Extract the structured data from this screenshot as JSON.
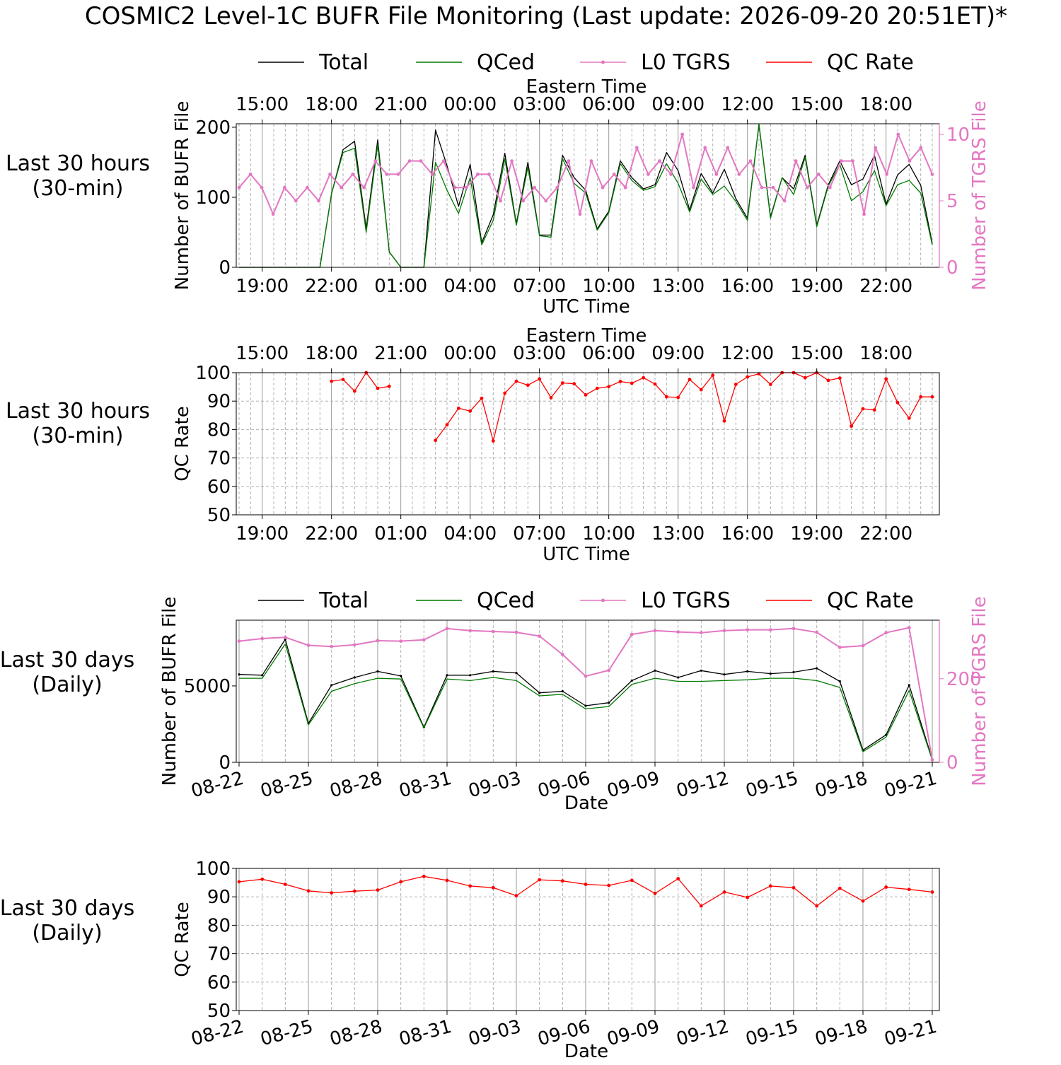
{
  "title": "COSMIC2 Level-1C BUFR File Monitoring (Last update: 2026-09-20 20:51ET)*",
  "legend": [
    {
      "label": "Total",
      "color": "#000000",
      "marker": false
    },
    {
      "label": "QCed",
      "color": "#007a00",
      "marker": false
    },
    {
      "label": "L0 TGRS",
      "color": "#e377c2",
      "marker": true
    },
    {
      "label": "QC Rate",
      "color": "#ff0000",
      "marker": false
    }
  ],
  "row_labels": [
    [
      "Last 30 hours",
      "(30-min)"
    ],
    [
      "Last 30 hours",
      "(30-min)"
    ],
    [
      "Last 30 days",
      "(Daily)"
    ],
    [
      "Last 30 days",
      "(Daily)"
    ]
  ],
  "colors": {
    "total": "#000000",
    "qced": "#007a00",
    "tgrs": "#e377c2",
    "qcrate": "#ff0000"
  },
  "chart_data": [
    {
      "type": "line",
      "x_label": "UTC Time",
      "top_x_label": "Eastern Time",
      "ylabel": "Number of BUFR File",
      "y2label": "Number of TGRS File",
      "ylim": [
        0,
        205
      ],
      "y2lim": [
        0,
        10.8
      ],
      "yticks": [
        0,
        100,
        200
      ],
      "y2ticks": [
        0,
        5,
        10
      ],
      "x_ticks": [
        "19:00",
        "22:00",
        "01:00",
        "04:00",
        "07:00",
        "10:00",
        "13:00",
        "16:00",
        "19:00",
        "22:00"
      ],
      "top_ticks": [
        "15:00",
        "18:00",
        "21:00",
        "00:00",
        "03:00",
        "06:00",
        "09:00",
        "12:00",
        "15:00",
        "18:00"
      ],
      "series": [
        {
          "name": "Total",
          "values": [
            0,
            0,
            0,
            0,
            0,
            0,
            0,
            0,
            105,
            168,
            180,
            55,
            182,
            22,
            0,
            0,
            0,
            196,
            145,
            87,
            147,
            35,
            75,
            163,
            62,
            150,
            46,
            46,
            160,
            128,
            110,
            55,
            80,
            152,
            128,
            112,
            118,
            164,
            138,
            82,
            134,
            106,
            140,
            98,
            70,
            204,
            72,
            128,
            112,
            160,
            60,
            118,
            152,
            118,
            126,
            160,
            90,
            132,
            147,
            117,
            34
          ]
        },
        {
          "name": "QCed",
          "values": [
            0,
            0,
            0,
            0,
            0,
            0,
            0,
            0,
            105,
            164,
            170,
            50,
            175,
            22,
            0,
            0,
            0,
            150,
            110,
            77,
            128,
            32,
            67,
            155,
            60,
            143,
            45,
            43,
            155,
            120,
            106,
            53,
            78,
            148,
            124,
            110,
            115,
            148,
            120,
            79,
            126,
            104,
            116,
            94,
            67,
            204,
            70,
            128,
            104,
            157,
            58,
            116,
            147,
            95,
            108,
            138,
            88,
            118,
            124,
            106,
            32
          ]
        },
        {
          "name": "L0 TGRS",
          "y_axis": "right",
          "values": [
            6,
            7,
            6,
            4,
            6,
            5,
            6,
            5,
            7,
            6,
            7,
            6,
            8,
            7,
            7,
            8,
            8,
            7,
            8,
            6,
            6,
            7,
            7,
            5,
            8,
            5,
            6,
            5,
            6,
            8,
            4,
            8,
            6,
            7,
            6,
            9,
            7,
            8,
            7,
            10,
            6,
            9,
            7,
            9,
            7,
            8,
            6,
            6,
            5,
            8,
            6,
            7,
            6,
            8,
            8,
            4,
            9,
            7,
            10,
            8,
            9,
            7
          ]
        }
      ]
    },
    {
      "type": "line",
      "x_label": "UTC Time",
      "top_x_label": "Eastern Time",
      "ylabel": "QC Rate",
      "ylim": [
        50,
        100
      ],
      "yticks": [
        50,
        60,
        70,
        80,
        90,
        100
      ],
      "x_ticks": [
        "19:00",
        "22:00",
        "01:00",
        "04:00",
        "07:00",
        "10:00",
        "13:00",
        "16:00",
        "19:00",
        "22:00"
      ],
      "top_ticks": [
        "15:00",
        "18:00",
        "21:00",
        "00:00",
        "03:00",
        "06:00",
        "09:00",
        "12:00",
        "15:00",
        "18:00"
      ],
      "series": [
        {
          "name": "QC Rate",
          "values": [
            null,
            null,
            null,
            null,
            null,
            null,
            null,
            null,
            97,
            97.6,
            93.5,
            100,
            94.5,
            95.2,
            null,
            null,
            null,
            76.2,
            81.7,
            87.5,
            86.5,
            91,
            76,
            92.8,
            97,
            95.6,
            97.8,
            91.2,
            96.4,
            96.1,
            92.2,
            94.5,
            95.1,
            96.9,
            96.3,
            98.2,
            96,
            91.5,
            91.3,
            97.6,
            94,
            99.1,
            83,
            95.9,
            98.5,
            99.6,
            95.9,
            100,
            100,
            98.2,
            100,
            97.3,
            98.1,
            81.2,
            87.3,
            86.9,
            97.8,
            89.5,
            84,
            91.5,
            91.5
          ]
        }
      ]
    },
    {
      "type": "line",
      "x_label": "Date",
      "ylabel": "Number of BUFR File",
      "y2label": "Number of TGRS File",
      "ylim": [
        0,
        9300
      ],
      "y2lim": [
        0,
        340
      ],
      "yticks": [
        0,
        5000
      ],
      "y2ticks": [
        0,
        200
      ],
      "x_ticks": [
        "08-22",
        "08-25",
        "08-28",
        "08-31",
        "09-03",
        "09-06",
        "09-09",
        "09-12",
        "09-15",
        "09-18",
        "09-21"
      ],
      "series": [
        {
          "name": "Total",
          "values": [
            5750,
            5700,
            8050,
            2550,
            5050,
            5550,
            5950,
            5650,
            2300,
            5700,
            5700,
            5950,
            5850,
            4550,
            4650,
            3700,
            3900,
            5350,
            6000,
            5550,
            6000,
            5750,
            5950,
            5800,
            5900,
            6150,
            5300,
            800,
            1800,
            5050,
            200
          ]
        },
        {
          "name": "QCed",
          "values": [
            5500,
            5500,
            7750,
            2450,
            4650,
            5150,
            5500,
            5450,
            2250,
            5450,
            5350,
            5550,
            5350,
            4350,
            4450,
            3500,
            3650,
            5100,
            5500,
            5300,
            5300,
            5350,
            5400,
            5500,
            5500,
            5350,
            4900,
            700,
            1650,
            4700,
            150
          ]
        },
        {
          "name": "L0 TGRS",
          "y_axis": "right",
          "values": [
            290,
            296,
            299,
            280,
            277,
            281,
            291,
            290,
            293,
            320,
            315,
            313,
            311,
            302,
            258,
            206,
            220,
            306,
            315,
            312,
            310,
            315,
            317,
            317,
            320,
            311,
            275,
            279,
            310,
            322,
            6
          ]
        }
      ]
    },
    {
      "type": "line",
      "x_label": "Date",
      "ylabel": "QC Rate",
      "ylim": [
        50,
        100
      ],
      "yticks": [
        50,
        60,
        70,
        80,
        90,
        100
      ],
      "x_ticks": [
        "08-22",
        "08-25",
        "08-28",
        "08-31",
        "09-03",
        "09-06",
        "09-09",
        "09-12",
        "09-15",
        "09-18",
        "09-21"
      ],
      "series": [
        {
          "name": "QC Rate",
          "values": [
            95.3,
            96.2,
            94.4,
            92.1,
            91.4,
            92,
            92.4,
            95.3,
            97.2,
            95.8,
            93.8,
            93.2,
            90.4,
            96,
            95.6,
            94.4,
            94,
            95.8,
            91.2,
            96.4,
            86.8,
            91.7,
            89.8,
            93.8,
            93.2,
            86.8,
            93,
            88.5,
            93.4,
            92.6,
            91.7
          ]
        }
      ]
    }
  ]
}
